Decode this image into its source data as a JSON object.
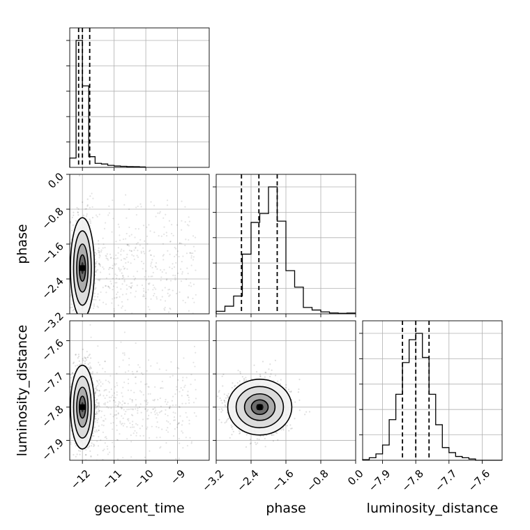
{
  "chart_data": {
    "type": "corner",
    "grid": true,
    "parameters": [
      {
        "key": "geocent_time",
        "label": "geocent_time",
        "range": [
          -12.4,
          -8.0
        ],
        "ticks": [
          -12,
          -11,
          -10,
          -9
        ],
        "tick_labels": [
          "−12",
          "−11",
          "−10",
          "−9"
        ],
        "histogram": {
          "bin_edges": [
            -12.4,
            -12.2,
            -12.0,
            -11.8,
            -11.6,
            -11.4,
            -11.2,
            -11.0,
            -10.8,
            -10.6,
            -10.4,
            -10.2,
            -10.0
          ],
          "counts": [
            0.07,
            0.95,
            0.61,
            0.08,
            0.03,
            0.025,
            0.015,
            0.01,
            0.008,
            0.006,
            0.005,
            0.003
          ]
        },
        "quantiles": [
          -12.12,
          -12.0,
          -11.77
        ]
      },
      {
        "key": "phase",
        "label": "phase",
        "range": [
          -3.2,
          0.0
        ],
        "ticks": [
          -3.2,
          -2.4,
          -1.6,
          -0.8,
          0.0
        ],
        "tick_labels": [
          "−3.2",
          "−2.4",
          "−1.6",
          "−0.8",
          "0.0"
        ],
        "histogram": {
          "bin_edges": [
            -3.2,
            -3.0,
            -2.8,
            -2.6,
            -2.4,
            -2.2,
            -2.0,
            -1.8,
            -1.6,
            -1.4,
            -1.2,
            -1.0,
            -0.8,
            -0.6,
            -0.4,
            -0.2,
            0.0
          ],
          "counts": [
            0.02,
            0.06,
            0.14,
            0.47,
            0.72,
            0.79,
            1.0,
            0.73,
            0.34,
            0.21,
            0.05,
            0.03,
            0.015,
            0.007,
            0.004,
            0.006
          ]
        },
        "quantiles": [
          -2.62,
          -2.22,
          -1.8
        ]
      },
      {
        "key": "luminosity_distance",
        "label": "luminosity_distance",
        "range": [
          -7.96,
          -7.54
        ],
        "ticks": [
          -7.9,
          -7.8,
          -7.7,
          -7.6
        ],
        "tick_labels": [
          "−7.9",
          "−7.8",
          "−7.7",
          "−7.6"
        ],
        "histogram": {
          "bin_edges": [
            -7.96,
            -7.94,
            -7.92,
            -7.9,
            -7.88,
            -7.86,
            -7.84,
            -7.82,
            -7.8,
            -7.78,
            -7.76,
            -7.74,
            -7.72,
            -7.7,
            -7.68,
            -7.66,
            -7.64,
            -7.62,
            -7.6,
            -7.58,
            -7.56,
            -7.54
          ],
          "counts": [
            0.005,
            0.02,
            0.05,
            0.12,
            0.32,
            0.52,
            0.77,
            0.95,
            1.0,
            0.81,
            0.52,
            0.28,
            0.1,
            0.06,
            0.03,
            0.02,
            0.01,
            0.0,
            0.0,
            0.0,
            0.0
          ]
        },
        "quantiles": [
          -7.84,
          -7.8,
          -7.76
        ]
      }
    ],
    "pairs": [
      {
        "x": "geocent_time",
        "y": "phase",
        "peak": [
          -12.0,
          -2.15
        ],
        "spread": [
          0.18,
          0.55
        ],
        "tail_extends_to_x": -8.5
      },
      {
        "x": "geocent_time",
        "y": "luminosity_distance",
        "peak": [
          -12.0,
          -7.8
        ],
        "spread": [
          0.18,
          0.06
        ],
        "tail_extends_to_x": -8.5
      },
      {
        "x": "phase",
        "y": "luminosity_distance",
        "peak": [
          -2.2,
          -7.8
        ],
        "spread": [
          0.35,
          0.04
        ]
      }
    ]
  }
}
